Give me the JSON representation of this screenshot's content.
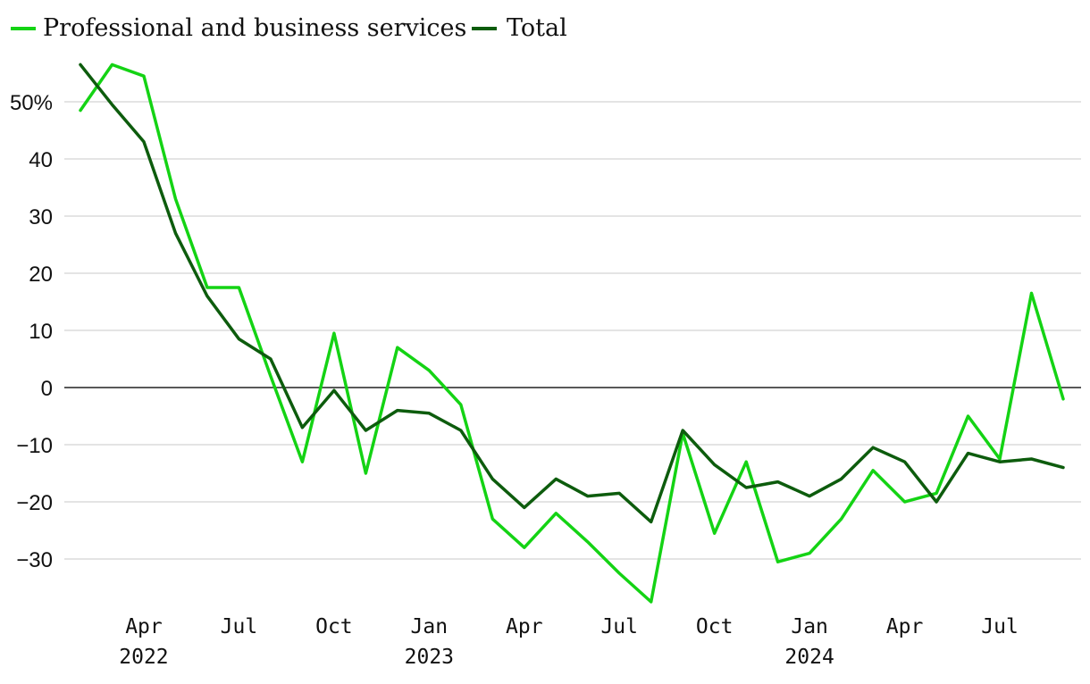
{
  "chart_data": {
    "type": "line",
    "title": "",
    "xlabel": "",
    "ylabel": "",
    "ylim": [
      -38,
      58
    ],
    "grid": true,
    "legend_position": "top-left",
    "x": [
      "2022-02",
      "2022-03",
      "2022-04",
      "2022-05",
      "2022-06",
      "2022-07",
      "2022-08",
      "2022-09",
      "2022-10",
      "2022-11",
      "2022-12",
      "2023-01",
      "2023-02",
      "2023-03",
      "2023-04",
      "2023-05",
      "2023-06",
      "2023-07",
      "2023-08",
      "2023-09",
      "2023-10",
      "2023-11",
      "2023-12",
      "2024-01",
      "2024-02",
      "2024-03",
      "2024-04",
      "2024-05",
      "2024-06",
      "2024-07",
      "2024-08",
      "2024-09"
    ],
    "y_ticks": [
      {
        "value": 50,
        "label": "50%"
      },
      {
        "value": 40,
        "label": "40"
      },
      {
        "value": 30,
        "label": "30"
      },
      {
        "value": 20,
        "label": "20"
      },
      {
        "value": 10,
        "label": "10"
      },
      {
        "value": 0,
        "label": "0"
      },
      {
        "value": -10,
        "label": "−10"
      },
      {
        "value": -20,
        "label": "−20"
      },
      {
        "value": -30,
        "label": "−30"
      }
    ],
    "x_ticks": [
      {
        "index": 2,
        "label": "Apr",
        "sublabel": "2022"
      },
      {
        "index": 5,
        "label": "Jul",
        "sublabel": ""
      },
      {
        "index": 8,
        "label": "Oct",
        "sublabel": ""
      },
      {
        "index": 11,
        "label": "Jan",
        "sublabel": "2023"
      },
      {
        "index": 14,
        "label": "Apr",
        "sublabel": ""
      },
      {
        "index": 17,
        "label": "Jul",
        "sublabel": ""
      },
      {
        "index": 20,
        "label": "Oct",
        "sublabel": ""
      },
      {
        "index": 23,
        "label": "Jan",
        "sublabel": "2024"
      },
      {
        "index": 26,
        "label": "Apr",
        "sublabel": ""
      },
      {
        "index": 29,
        "label": "Jul",
        "sublabel": ""
      }
    ],
    "series": [
      {
        "name": "Professional and business services",
        "color": "#14d314",
        "values": [
          48.5,
          56.5,
          54.5,
          33,
          17.5,
          17.5,
          2,
          -13,
          9.5,
          -15,
          7,
          3,
          -3,
          -23,
          -28,
          -22,
          -27,
          -32.5,
          -37.5,
          -8,
          -25.5,
          -13,
          -30.5,
          -29,
          -23,
          -14.5,
          -20,
          -18.5,
          -5,
          -12.5,
          16.5,
          -2
        ]
      },
      {
        "name": "Total",
        "color": "#0d5c0d",
        "values": [
          56.5,
          49.5,
          43,
          27,
          16,
          8.5,
          5,
          -7,
          -0.5,
          -7.5,
          -4,
          -4.5,
          -7.5,
          -16,
          -21,
          -16,
          -19,
          -18.5,
          -23.5,
          -7.5,
          -13.5,
          -17.5,
          -16.5,
          -19,
          -16,
          -10.5,
          -13,
          -20,
          -11.5,
          -13,
          -12.5,
          -14
        ]
      }
    ]
  }
}
